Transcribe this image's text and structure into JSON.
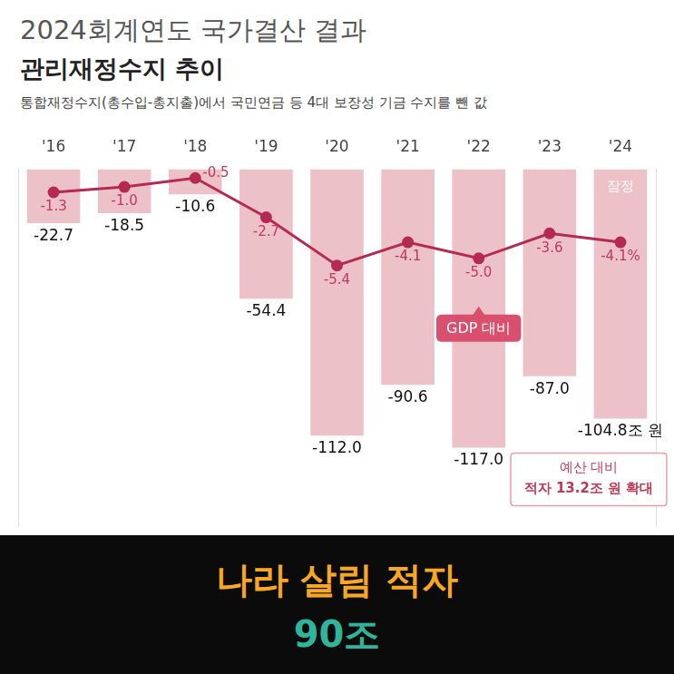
{
  "chart_data": {
    "type": "bar",
    "title": "2024회계연도 국가결산 결과",
    "subtitle": "관리재정수지 추이",
    "caption": "통합재정수지(총수입-총지출)에서 국민연금 등 4대 보장성 기금 수지를 뺀 값",
    "categories": [
      "'16",
      "'17",
      "'18",
      "'19",
      "'20",
      "'21",
      "'22",
      "'23",
      "'24"
    ],
    "series": [
      {
        "type": "bar",
        "color": "#ecc1c8",
        "values": [
          -22.7,
          -18.5,
          -10.6,
          -54.4,
          -112.0,
          -90.6,
          -117.0,
          -87.0,
          -104.8
        ],
        "value_labels": [
          "-22.7",
          "-18.5",
          "-10.6",
          "-54.4",
          "-112.0",
          "-90.6",
          "-117.0",
          "-87.0",
          "-104.8조 원"
        ]
      },
      {
        "type": "line",
        "color": "#b52a50",
        "axis": "y2",
        "marker": "circle",
        "values": [
          -1.3,
          -1.0,
          -0.5,
          -2.7,
          -5.4,
          -4.1,
          -5.0,
          -3.6,
          -4.1
        ],
        "value_labels": [
          "-1.3",
          "-1.0",
          "-0.5",
          "-2.7",
          "-5.4",
          "-4.1",
          "-5.0",
          "-3.6",
          "-4.1%"
        ]
      }
    ],
    "ylim": [
      -150,
      0
    ],
    "y2lim": [
      -20,
      0
    ],
    "grid": false,
    "tick_labels": "x",
    "data_labels": true,
    "annotations": {
      "provisional": "잠정",
      "line_callout": "GDP 대비",
      "budget_note": [
        "예산 대비",
        "적자 13.2조 원 확대"
      ]
    }
  },
  "banner": {
    "line1": "나라 살림 적자",
    "line2": "90조"
  }
}
